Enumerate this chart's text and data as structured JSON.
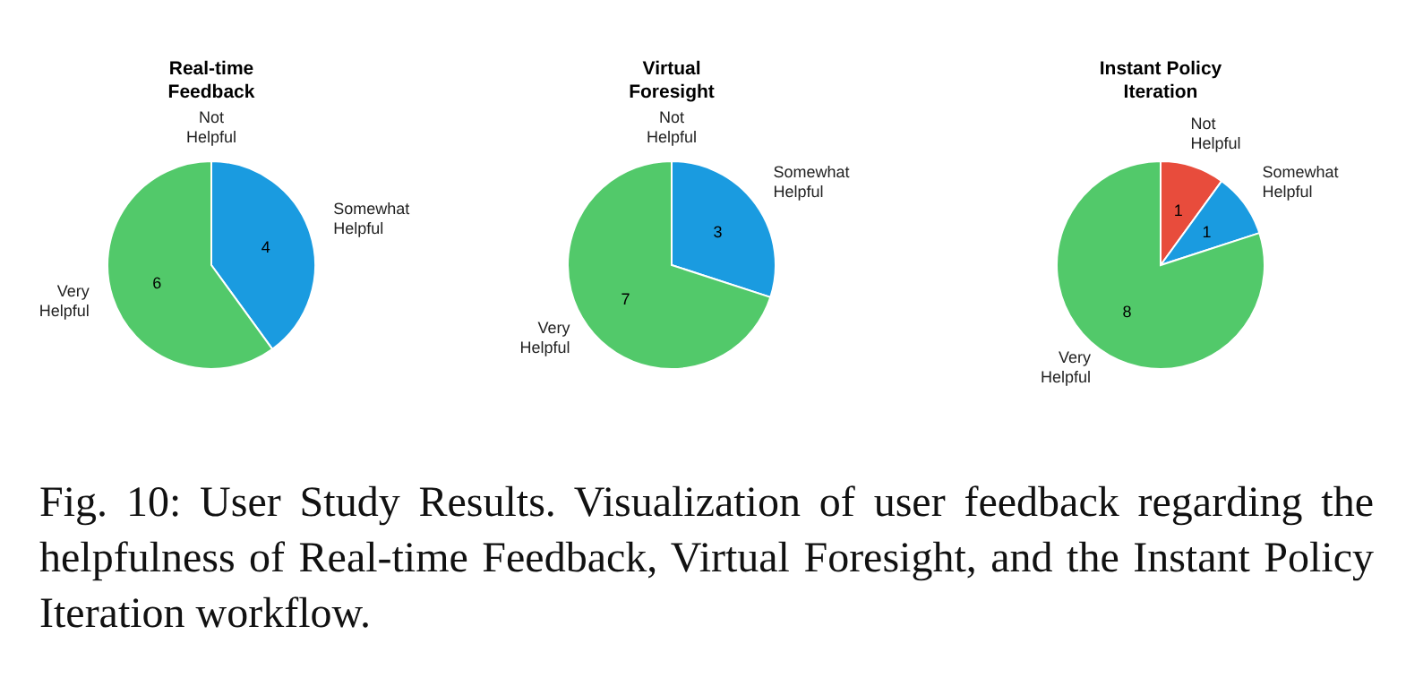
{
  "chart_data": [
    {
      "type": "pie",
      "title": "Real-time Feedback",
      "categories": [
        "Not Helpful",
        "Somewhat Helpful",
        "Very Helpful"
      ],
      "values": [
        0,
        4,
        6
      ],
      "value_labels": [
        null,
        "4",
        "6"
      ],
      "colors": [
        "#e84c3c",
        "#1a9be0",
        "#52c96a"
      ],
      "annotations": [
        "Fig. 10: User Study Results. Visualization of user feedback regarding the helpfulness of Real-time Feedback, Virtual Foresight, and the Instant Policy Iteration workflow."
      ]
    },
    {
      "type": "pie",
      "title": "Virtual Foresight",
      "categories": [
        "Not Helpful",
        "Somewhat Helpful",
        "Very Helpful"
      ],
      "values": [
        0,
        3,
        7
      ],
      "value_labels": [
        null,
        "3",
        "7"
      ],
      "colors": [
        "#e84c3c",
        "#1a9be0",
        "#52c96a"
      ]
    },
    {
      "type": "pie",
      "title": "Instant Policy Iteration",
      "categories": [
        "Not Helpful",
        "Somewhat Helpful",
        "Very Helpful"
      ],
      "values": [
        1,
        1,
        8
      ],
      "value_labels": [
        "1",
        "1",
        "8"
      ],
      "colors": [
        "#e84c3c",
        "#1a9be0",
        "#52c96a"
      ]
    }
  ]
}
